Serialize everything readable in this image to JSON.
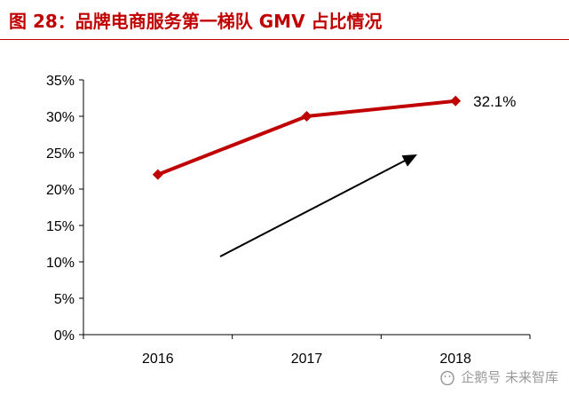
{
  "figure": {
    "title": "图 28：品牌电商服务第一梯队 GMV 占比情况",
    "watermark": "企鹅号 未来智库"
  },
  "colors": {
    "title": "#c00000",
    "series": "#c00000",
    "axis": "#000000",
    "arrow": "#000000"
  },
  "chart_data": {
    "type": "line",
    "title": "",
    "xlabel": "",
    "ylabel": "",
    "categories": [
      "2016",
      "2017",
      "2018"
    ],
    "series": [
      {
        "values": [
          22,
          30,
          32.1
        ]
      }
    ],
    "data_labels": [
      {
        "category": "2018",
        "text": "32.1%"
      }
    ],
    "ylim": [
      0,
      35
    ],
    "ytick_step": 5,
    "ytick_format": "{}%",
    "grid": false,
    "legend": "none",
    "marker": "diamond",
    "annotation": "upward trend arrow"
  }
}
